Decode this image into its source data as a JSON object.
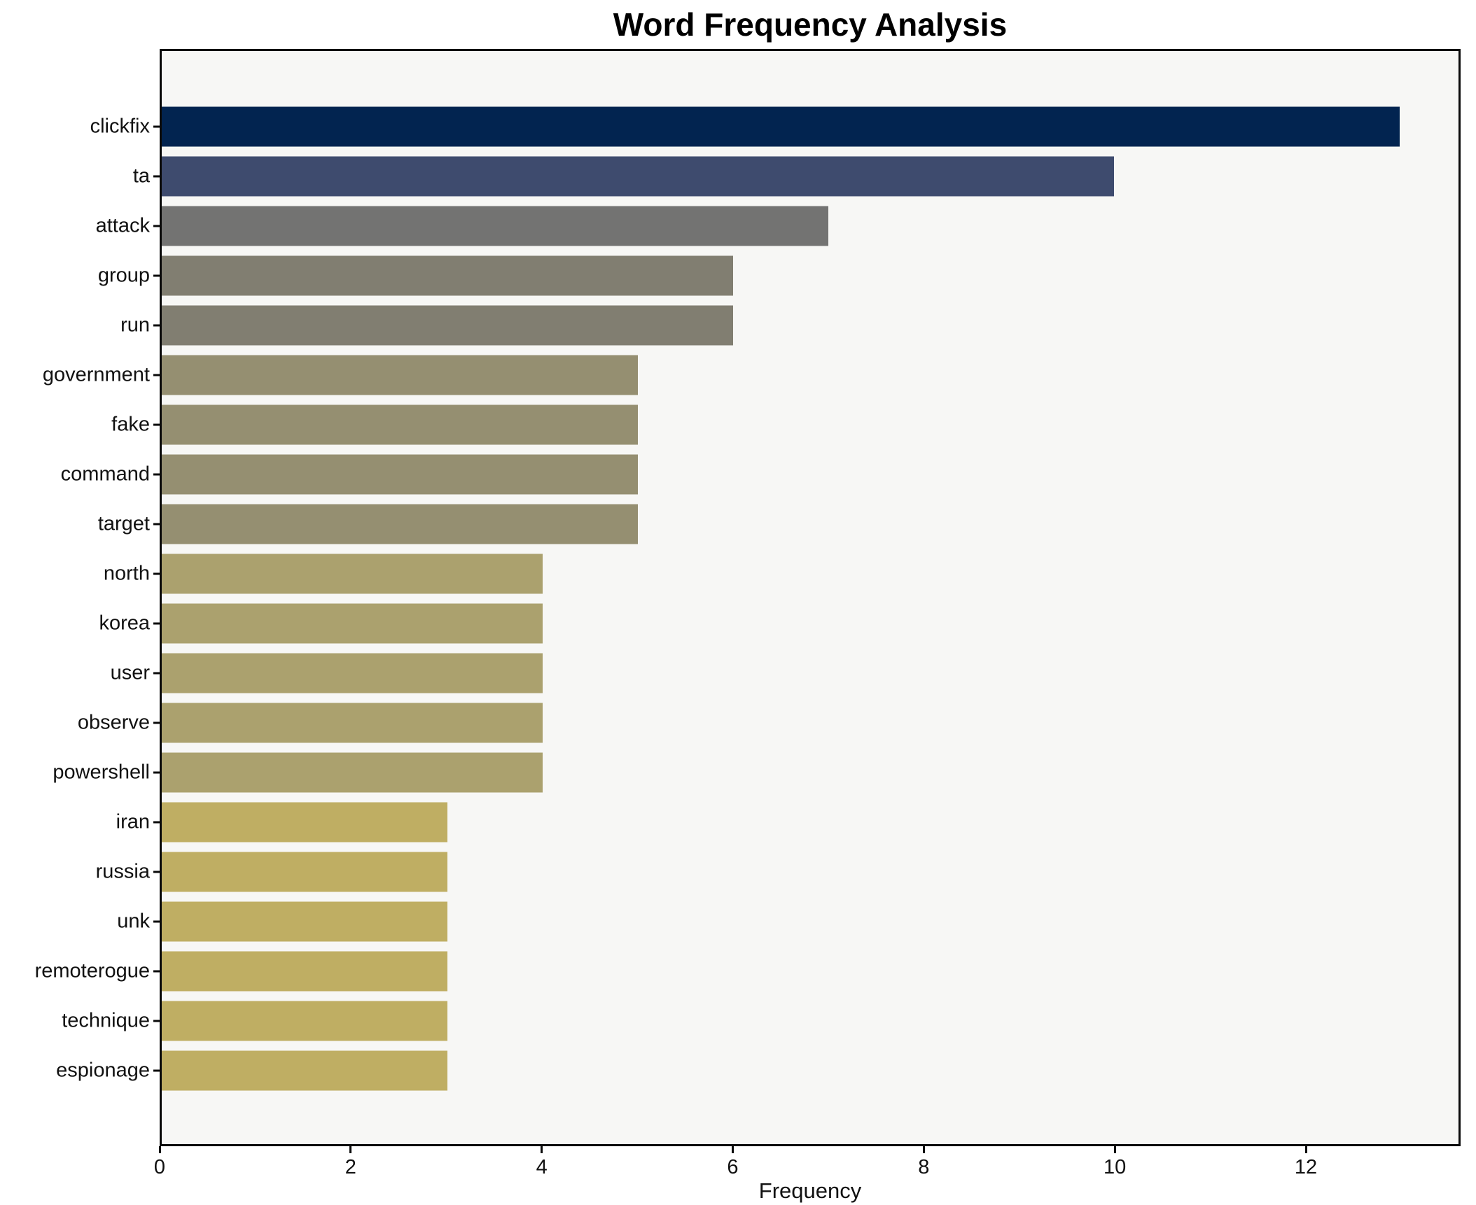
{
  "title": "Word Frequency Analysis",
  "xlabel": "Frequency",
  "chart_data": {
    "type": "bar",
    "orientation": "horizontal",
    "title": "Word Frequency Analysis",
    "xlabel": "Frequency",
    "ylabel": "",
    "categories": [
      "clickfix",
      "ta",
      "attack",
      "group",
      "run",
      "government",
      "fake",
      "command",
      "target",
      "north",
      "korea",
      "user",
      "observe",
      "powershell",
      "iran",
      "russia",
      "unk",
      "remoterogue",
      "technique",
      "espionage"
    ],
    "values": [
      13,
      10,
      7,
      6,
      6,
      5,
      5,
      5,
      5,
      4,
      4,
      4,
      4,
      4,
      3,
      3,
      3,
      3,
      3,
      3
    ],
    "bar_colors": [
      "#022450",
      "#3e4b6e",
      "#737372",
      "#817e71",
      "#817e71",
      "#958f71",
      "#958f71",
      "#958f71",
      "#958f71",
      "#aba16e",
      "#aba16e",
      "#aba16e",
      "#aba16e",
      "#aba16e",
      "#bfae63",
      "#bfae63",
      "#bfae63",
      "#bfae63",
      "#bfae63",
      "#bfae63"
    ],
    "xlim": [
      0,
      13.62
    ],
    "x_ticks": [
      0,
      2,
      4,
      6,
      8,
      10,
      12
    ],
    "grid": false,
    "legend": false,
    "plot_background": "#f7f7f5",
    "figure_background": "#ffffff",
    "spine_color": "#0a0a0a",
    "text_color": "#111111"
  }
}
